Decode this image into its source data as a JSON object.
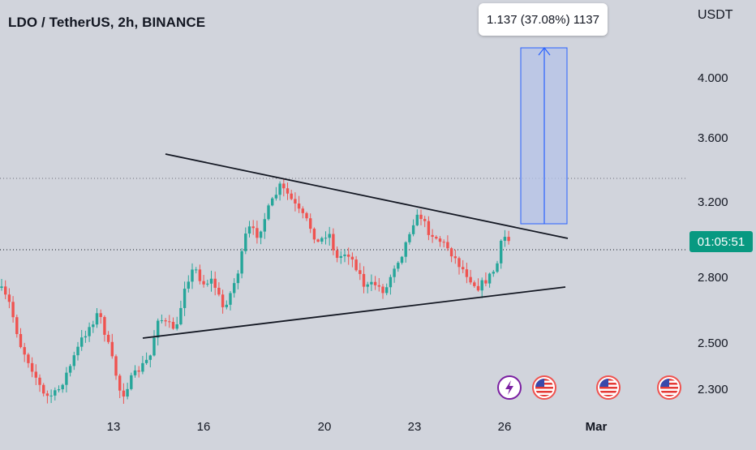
{
  "header": {
    "symbol_title": "LDO / TetherUS, 2h, BINANCE"
  },
  "measure_tooltip": {
    "text": "1.137 (37.08%) 1137"
  },
  "price_axis": {
    "currency": "USDT",
    "labels": [
      "4.000",
      "3.600",
      "3.200",
      "2.800",
      "2.500",
      "2.300"
    ],
    "countdown": "01:05:51"
  },
  "time_axis": {
    "labels": [
      "13",
      "16",
      "20",
      "23",
      "26",
      "Mar"
    ]
  },
  "colors": {
    "up_candle": "#26a69a",
    "down_candle": "#ef5350",
    "background": "#d1d4dc",
    "countdown_bg": "#089981",
    "measure_fill": "#b9c6e6",
    "measure_line": "#2962ff",
    "event_purple": "#7b1fa2"
  },
  "events": [
    {
      "icon": "lightning-icon"
    },
    {
      "icon": "us-flag-icon"
    },
    {
      "icon": "us-flag-icon"
    },
    {
      "icon": "us-flag-icon"
    }
  ]
}
